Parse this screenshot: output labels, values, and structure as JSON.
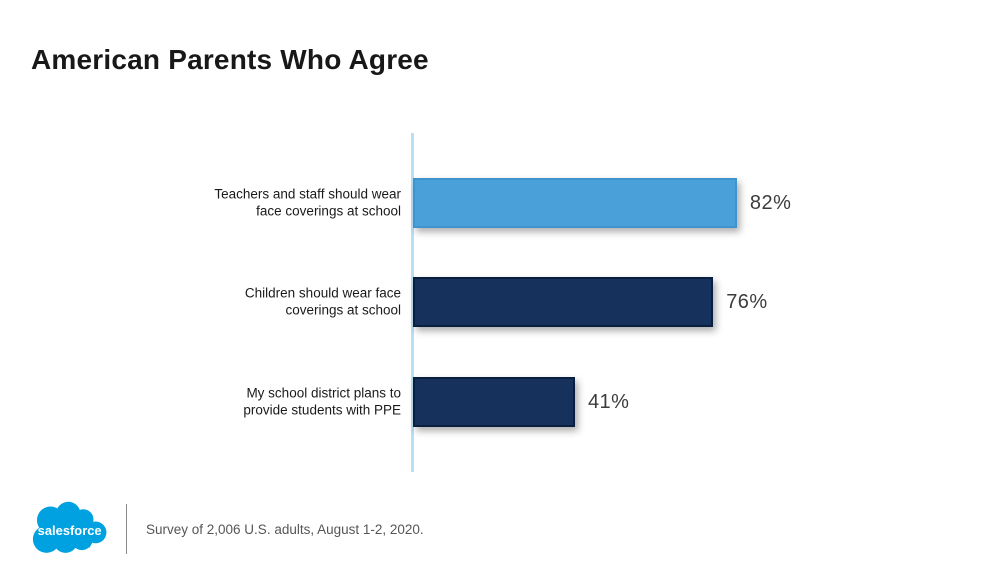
{
  "chart_data": {
    "type": "bar",
    "orientation": "horizontal",
    "title": "American Parents Who Agree",
    "categories": [
      "Teachers and staff should wear\nface coverings at school",
      "Children should wear face\ncoverings at school",
      "My school district plans to\nprovide students with PPE"
    ],
    "values": [
      82,
      76,
      41
    ],
    "value_labels": [
      "82%",
      "76%",
      "41%"
    ],
    "xlim": [
      0,
      100
    ],
    "grid": false,
    "legend": false,
    "bar_colors": [
      "#4AA0D8",
      "#16325C",
      "#16325C"
    ],
    "bar_border_colors": [
      "#3F94CD",
      "#0A1E3F",
      "#0A1E3F"
    ],
    "axis_line_color": "#B9DFF6"
  },
  "footer": {
    "logo_text": "salesforce",
    "logo_color": "#00A1E0",
    "note": "Survey of 2,006 U.S. adults, August 1-2, 2020."
  }
}
